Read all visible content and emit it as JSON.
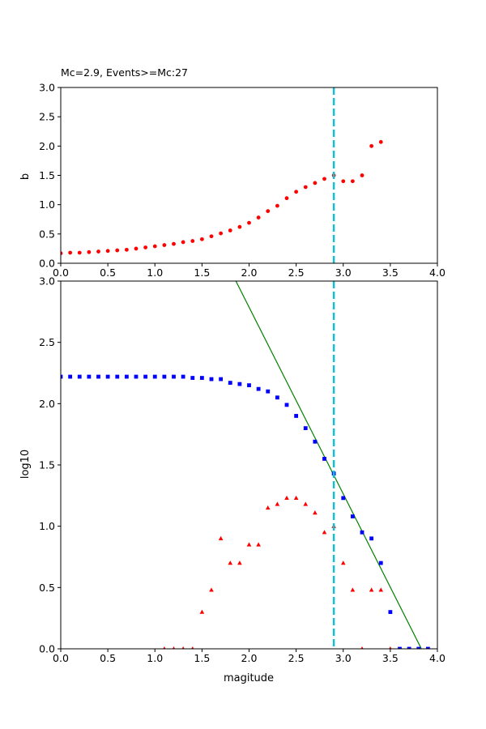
{
  "chart_data": [
    {
      "type": "scatter",
      "title": "Mc=2.9, Events>=Mc:27",
      "xlabel": "",
      "ylabel": "b",
      "xlim": [
        0,
        4
      ],
      "ylim": [
        0,
        3
      ],
      "x_ticks": [
        "0.0",
        "0.5",
        "1.0",
        "1.5",
        "2.0",
        "2.5",
        "3.0",
        "3.5",
        "4.0"
      ],
      "y_ticks": [
        "0.0",
        "0.5",
        "1.0",
        "1.5",
        "2.0",
        "2.5",
        "3.0"
      ],
      "grid": false,
      "series": [
        {
          "marker": "circle",
          "color": "#ff0000",
          "x": [
            0.0,
            0.1,
            0.2,
            0.3,
            0.4,
            0.5,
            0.6,
            0.7,
            0.8,
            0.9,
            1.0,
            1.1,
            1.2,
            1.3,
            1.4,
            1.5,
            1.6,
            1.7,
            1.8,
            1.9,
            2.0,
            2.1,
            2.2,
            2.3,
            2.4,
            2.5,
            2.6,
            2.7,
            2.8,
            2.9,
            3.0,
            3.1,
            3.2,
            3.3,
            3.4
          ],
          "y": [
            0.17,
            0.18,
            0.18,
            0.19,
            0.2,
            0.21,
            0.22,
            0.23,
            0.25,
            0.27,
            0.29,
            0.31,
            0.33,
            0.36,
            0.38,
            0.41,
            0.46,
            0.51,
            0.56,
            0.62,
            0.69,
            0.78,
            0.89,
            0.98,
            1.11,
            1.22,
            1.3,
            1.37,
            1.44,
            1.5,
            1.4,
            1.4,
            1.5,
            2.0,
            2.07
          ]
        }
      ],
      "vlines": [
        {
          "x": 2.9,
          "color": "#17becf",
          "style": "dashed"
        }
      ]
    },
    {
      "type": "scatter",
      "title": "",
      "xlabel": "magitude",
      "ylabel": "log10",
      "xlim": [
        0,
        4
      ],
      "ylim": [
        0,
        3
      ],
      "x_ticks": [
        "0.0",
        "0.5",
        "1.0",
        "1.5",
        "2.0",
        "2.5",
        "3.0",
        "3.5",
        "4.0"
      ],
      "y_ticks": [
        "0.0",
        "0.5",
        "1.0",
        "1.5",
        "2.0",
        "2.5",
        "3.0"
      ],
      "grid": false,
      "series": [
        {
          "marker": "square",
          "color": "#0000ff",
          "x": [
            0.0,
            0.1,
            0.2,
            0.3,
            0.4,
            0.5,
            0.6,
            0.7,
            0.8,
            0.9,
            1.0,
            1.1,
            1.2,
            1.3,
            1.4,
            1.5,
            1.6,
            1.7,
            1.8,
            1.9,
            2.0,
            2.1,
            2.2,
            2.3,
            2.4,
            2.5,
            2.6,
            2.7,
            2.8,
            2.9,
            3.0,
            3.1,
            3.2,
            3.3,
            3.4,
            3.5,
            3.6,
            3.7,
            3.8,
            3.9
          ],
          "y": [
            2.22,
            2.22,
            2.22,
            2.22,
            2.22,
            2.22,
            2.22,
            2.22,
            2.22,
            2.22,
            2.22,
            2.22,
            2.22,
            2.22,
            2.21,
            2.21,
            2.2,
            2.2,
            2.17,
            2.16,
            2.15,
            2.12,
            2.1,
            2.05,
            1.99,
            1.9,
            1.8,
            1.69,
            1.55,
            1.43,
            1.23,
            1.08,
            0.95,
            0.9,
            0.7,
            0.3,
            0.0,
            0.0,
            0.0,
            0.0
          ]
        },
        {
          "marker": "triangle",
          "color": "#ff0000",
          "x": [
            1.1,
            1.2,
            1.3,
            1.4,
            1.5,
            1.6,
            1.7,
            1.8,
            1.9,
            2.0,
            2.1,
            2.2,
            2.3,
            2.4,
            2.5,
            2.6,
            2.7,
            2.8,
            2.9,
            3.0,
            3.1,
            3.2,
            3.3,
            3.4,
            3.5
          ],
          "y": [
            0.0,
            0.0,
            0.0,
            0.0,
            0.3,
            0.48,
            0.9,
            0.7,
            0.7,
            0.85,
            0.85,
            1.15,
            1.18,
            1.23,
            1.23,
            1.18,
            1.11,
            0.95,
            1.0,
            0.7,
            0.48,
            0.0,
            0.48,
            0.48,
            0.0
          ]
        }
      ],
      "lines": [
        {
          "x": [
            1.86,
            3.83
          ],
          "y": [
            3.0,
            0.0
          ],
          "color": "#008000"
        }
      ],
      "vlines": [
        {
          "x": 2.9,
          "color": "#17becf",
          "style": "dashed"
        }
      ]
    }
  ]
}
